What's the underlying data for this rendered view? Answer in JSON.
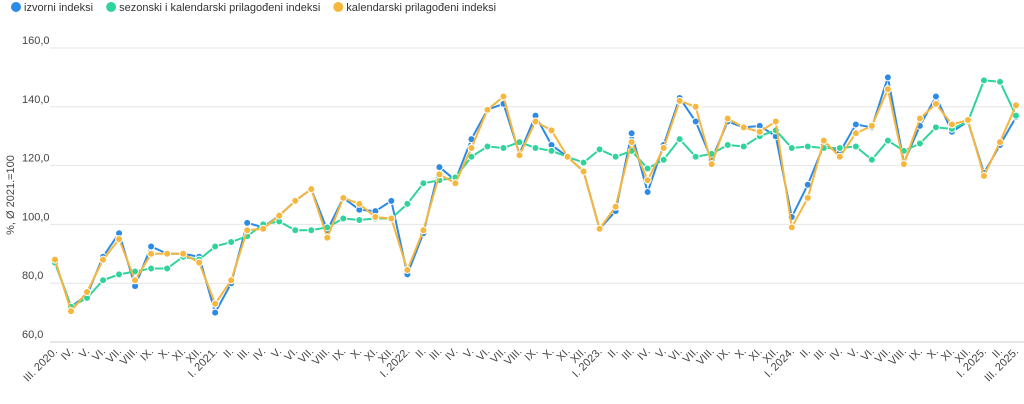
{
  "chart_data": {
    "type": "line",
    "y_label": "%, Ø 2021.=100",
    "categories": [
      "III. 2020.",
      "IV.",
      "V.",
      "VI.",
      "VII.",
      "VIII.",
      "IX.",
      "X.",
      "XI.",
      "XII.",
      "I. 2021.",
      "II.",
      "III.",
      "IV.",
      "V.",
      "VI.",
      "VII.",
      "VIII.",
      "IX.",
      "X.",
      "XI.",
      "XII.",
      "I. 2022.",
      "II.",
      "III.",
      "IV.",
      "V.",
      "VI.",
      "VII.",
      "VIII.",
      "IX.",
      "X.",
      "XI.",
      "XII.",
      "I. 2023.",
      "II.",
      "III.",
      "IV.",
      "V.",
      "VI.",
      "VII.",
      "VIII.",
      "IX.",
      "X.",
      "XI.",
      "XII.",
      "I. 2024.",
      "II.",
      "III.",
      "IV.",
      "V.",
      "VI.",
      "VII.",
      "VIII.",
      "IX.",
      "X.",
      "XI.",
      "XII.",
      "I. 2025.",
      "II.",
      "III. 2025."
    ],
    "series": [
      {
        "name": "izvorni indeksi",
        "color": "#2b8be6",
        "values": [
          87,
          72,
          76,
          89,
          97,
          79,
          92.5,
          90,
          90,
          89,
          70,
          80,
          100.5,
          99,
          103,
          108,
          112,
          98,
          109,
          105,
          104.5,
          108,
          83,
          97,
          119.5,
          115,
          129,
          139,
          141,
          124,
          137,
          127,
          123,
          118,
          98.5,
          104.5,
          131,
          111,
          127,
          143,
          135,
          122,
          135,
          133,
          133.5,
          130,
          102.5,
          113.5,
          127,
          124.5,
          134,
          133,
          150,
          121,
          133.5,
          143.5,
          131.5,
          135,
          117.5,
          127,
          136.5
        ]
      },
      {
        "name": "sezonski i kalendarski prilagođeni indeksi",
        "color": "#2fd49a",
        "values": [
          87,
          72,
          75,
          81,
          83,
          84,
          85,
          85,
          89,
          88,
          92.5,
          94,
          96,
          100,
          101,
          98,
          98,
          99,
          102,
          101.5,
          102,
          102,
          107,
          114,
          115,
          116,
          123,
          126.5,
          126,
          128,
          126,
          125,
          123,
          121,
          125.5,
          123,
          125,
          119,
          122,
          129,
          123,
          124,
          127,
          126.5,
          130,
          132,
          126,
          126.5,
          126,
          126,
          126.5,
          122,
          128.5,
          125,
          127.5,
          133,
          132.5,
          135,
          149,
          148.5,
          137
        ]
      },
      {
        "name": "kalendarski prilagođeni indeksi",
        "color": "#f7b63c",
        "values": [
          88,
          70.5,
          77,
          88,
          95,
          81,
          90,
          90,
          90,
          87,
          73,
          81,
          98,
          98.5,
          103,
          108,
          112,
          95.5,
          109,
          107,
          102.5,
          102,
          84.5,
          98,
          117,
          114,
          126,
          139,
          143.5,
          123.5,
          135,
          132,
          123,
          118,
          98.5,
          106,
          128,
          115,
          126,
          142,
          140,
          120.5,
          136,
          133,
          131.5,
          135,
          99,
          109,
          128.5,
          123,
          131,
          133.5,
          146,
          120.5,
          136,
          141,
          134,
          135.5,
          116.5,
          128,
          140.5
        ]
      }
    ],
    "ylim": [
      60,
      160
    ],
    "yticks": [
      {
        "value": 60,
        "label": "60,0"
      },
      {
        "value": 80,
        "label": "80,0"
      },
      {
        "value": 100,
        "label": "100,0"
      },
      {
        "value": 120,
        "label": "120,0"
      },
      {
        "value": 140,
        "label": "140,0"
      },
      {
        "value": 160,
        "label": "160,0"
      }
    ],
    "grid": true,
    "legend": "top-left"
  }
}
